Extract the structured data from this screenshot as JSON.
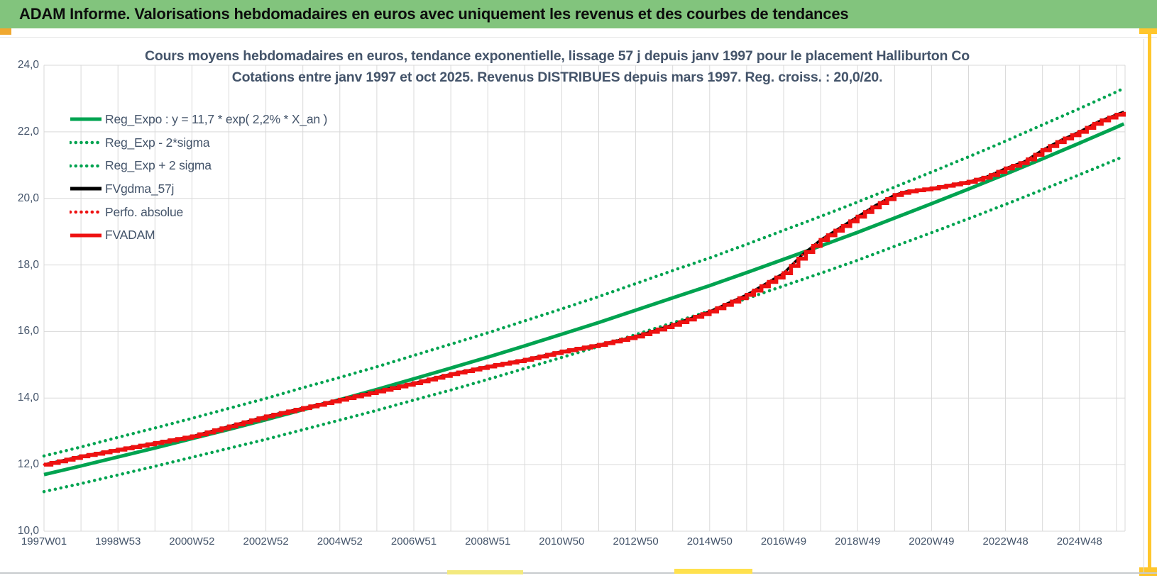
{
  "header": {
    "title": "ADAM Informe. Valorisations hebdomadaires en euros avec uniquement les revenus et des courbes de tendances"
  },
  "colors": {
    "header_green": "#82c47d",
    "text_dark": "#44546a",
    "grid": "#d9d9d9",
    "series_green": "#00a350",
    "series_red": "#ee1111",
    "series_black": "#000000",
    "accent_yellow": "#ffc62c"
  },
  "chart_data": {
    "type": "line",
    "title": "Cours moyens hebdomadaires en euros, tendance exponentielle, lissage 57 j depuis janv 1997 pour le placement Halliburton Co",
    "subtitle": "Cotations entre janv 1997 et oct 2025. Revenus DISTRIBUES depuis mars 1997. Reg. croiss. : 20,0/20.",
    "xlabel": "",
    "ylabel": "",
    "grid": true,
    "legend_position": "top-left-inside",
    "x_axis": {
      "unit": "years-since-1997",
      "tick_years": [
        0,
        2,
        4,
        6,
        8,
        10,
        12,
        14,
        16,
        18,
        20,
        22,
        24,
        26,
        28
      ],
      "tick_labels": [
        "1997W01",
        "1998W53",
        "2000W52",
        "2002W52",
        "2004W52",
        "2006W51",
        "2008W51",
        "2010W50",
        "2012W50",
        "2014W50",
        "2016W49",
        "2018W49",
        "2020W49",
        "2022W48",
        "2024W48"
      ]
    },
    "y_axis": {
      "min": 10,
      "max": 24,
      "step": 2,
      "tick_values": [
        24,
        22,
        20,
        18,
        16,
        14,
        12,
        10
      ],
      "tick_labels": [
        "24,0",
        "22,0",
        "20,0",
        "18,0",
        "16,0",
        "14,0",
        "12,0",
        "10,0"
      ]
    },
    "series": [
      {
        "name": "Reg_Expo : y = 11,7 * exp( 2,2% *  X_an )",
        "color": "#00a350",
        "style": "solid",
        "render": "line",
        "width": 5,
        "t": [
          0,
          1,
          2,
          3,
          4,
          5,
          6,
          7,
          8,
          9,
          10,
          11,
          12,
          13,
          14,
          15,
          16,
          17,
          18,
          19,
          20,
          21,
          22,
          23,
          24,
          25,
          26,
          27,
          28,
          29,
          29.2
        ],
        "v": [
          11.7,
          11.96,
          12.23,
          12.5,
          12.78,
          13.06,
          13.35,
          13.65,
          13.95,
          14.26,
          14.58,
          14.9,
          15.23,
          15.57,
          15.92,
          16.27,
          16.64,
          17.01,
          17.38,
          17.77,
          18.17,
          18.57,
          18.98,
          19.41,
          19.84,
          20.28,
          20.73,
          21.19,
          21.66,
          22.14,
          22.24
        ]
      },
      {
        "name": "Reg_Exp - 2*sigma",
        "color": "#00a350",
        "style": "dotted",
        "render": "line",
        "width": 4.5,
        "t": [
          0,
          1,
          2,
          3,
          4,
          5,
          6,
          7,
          8,
          9,
          10,
          11,
          12,
          13,
          14,
          15,
          16,
          17,
          18,
          19,
          20,
          21,
          22,
          23,
          24,
          25,
          26,
          27,
          28,
          29,
          29.2
        ],
        "v": [
          11.19,
          11.43,
          11.69,
          11.95,
          12.22,
          12.49,
          12.76,
          13.05,
          13.34,
          13.63,
          13.94,
          14.24,
          14.56,
          14.89,
          15.22,
          15.55,
          15.91,
          16.26,
          16.62,
          16.99,
          17.37,
          17.75,
          18.14,
          18.56,
          18.97,
          19.39,
          19.82,
          20.26,
          20.71,
          21.17,
          21.26
        ]
      },
      {
        "name": "Reg_Exp + 2 sigma",
        "color": "#00a350",
        "style": "dotted",
        "render": "line",
        "width": 4.5,
        "t": [
          0,
          1,
          2,
          3,
          4,
          5,
          6,
          7,
          8,
          9,
          10,
          11,
          12,
          13,
          14,
          15,
          16,
          17,
          18,
          19,
          20,
          21,
          22,
          23,
          24,
          25,
          26,
          27,
          28,
          29,
          29.2
        ],
        "v": [
          12.26,
          12.53,
          12.82,
          13.1,
          13.39,
          13.69,
          13.99,
          14.31,
          14.62,
          14.94,
          15.28,
          15.62,
          15.96,
          16.32,
          16.68,
          17.05,
          17.44,
          17.83,
          18.21,
          18.62,
          19.04,
          19.46,
          19.89,
          20.34,
          20.79,
          21.25,
          21.72,
          22.21,
          22.7,
          23.2,
          23.31
        ]
      },
      {
        "name": "FVgdma_57j",
        "color": "#000000",
        "style": "solid",
        "render": "line",
        "width": 3.6,
        "same_as": 5
      },
      {
        "name": "Perfo. absolue",
        "color": "#ee1111",
        "style": "dotted",
        "render": "line",
        "width": 3,
        "same_as": 5
      },
      {
        "name": "FVADAM",
        "color": "#ee1111",
        "style": "solid",
        "render": "steps",
        "width": 5.5,
        "t": [
          0,
          1,
          2,
          3,
          4,
          5,
          6,
          7,
          8,
          9,
          10,
          11,
          12,
          13,
          14,
          15,
          16,
          17,
          18,
          19,
          20,
          20.5,
          21,
          21.5,
          22,
          22.5,
          23,
          23.3,
          24,
          24.5,
          25,
          25.5,
          26,
          26.5,
          27,
          27.5,
          28,
          28.5,
          29.2
        ],
        "v": [
          12.0,
          12.25,
          12.45,
          12.65,
          12.85,
          13.15,
          13.45,
          13.7,
          13.95,
          14.2,
          14.45,
          14.72,
          14.95,
          15.15,
          15.4,
          15.6,
          15.85,
          16.2,
          16.6,
          17.1,
          17.75,
          18.3,
          18.75,
          19.1,
          19.45,
          19.8,
          20.1,
          20.2,
          20.3,
          20.4,
          20.5,
          20.65,
          20.9,
          21.1,
          21.45,
          21.75,
          22.0,
          22.3,
          22.6
        ]
      }
    ]
  }
}
